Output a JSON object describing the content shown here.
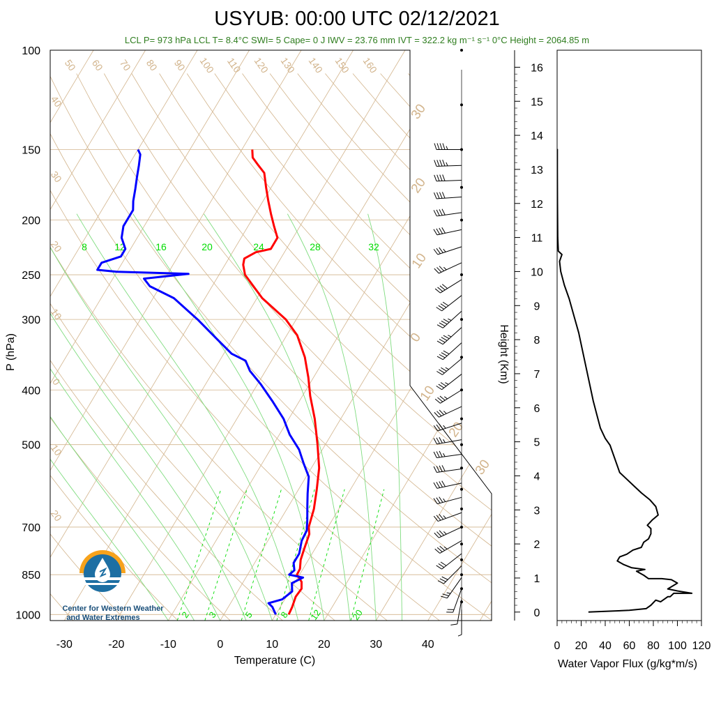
{
  "title": "USYUB: 00:00 UTC 02/12/2021",
  "subtitle": {
    "text": "LCL P= 973 hPa  LCL T= 8.4°C  SWI= 5  Cape= 0 J  IWV = 23.76 mm  IVT = 322.2 kg m⁻¹ s⁻¹  0°C Height = 2064.85 m",
    "color": "#2e7d1e"
  },
  "logo": {
    "line1": "Center for Western Weather",
    "line2": "and Water Extremes",
    "icon": "water-drop-sun-icon"
  },
  "colors": {
    "temperature": "#ff0000",
    "dewpoint": "#0000ff",
    "isotherm": "#d2b48c",
    "mixing_ratio": "#00dd00",
    "moist_adiabat": "#7fdc7f",
    "flux": "#000000"
  },
  "chart_data": [
    {
      "type": "line",
      "name": "skew-t",
      "xlabel": "Temperature (C)",
      "ylabel": "P (hPa)",
      "y_scale": "log",
      "xlim": [
        -34,
        52
      ],
      "ylim": [
        1025,
        100
      ],
      "x_ticks": [
        -30,
        -20,
        -10,
        0,
        10,
        20,
        30,
        40
      ],
      "y_ticks": [
        100,
        150,
        200,
        250,
        300,
        400,
        500,
        700,
        850,
        1000
      ],
      "isotherm_labels": [
        "50",
        "60",
        "70",
        "80",
        "90",
        "100",
        "110",
        "120",
        "130",
        "140",
        "150",
        "160"
      ],
      "theta_labels_left": [
        "40",
        "30",
        "20",
        "10",
        "0",
        "10",
        "20"
      ],
      "theta_labels_right": [
        "30",
        "20",
        "10",
        "0",
        "10",
        "20",
        "30"
      ],
      "mixing_ratio_labels_top": [
        "8",
        "12",
        "16",
        "20",
        "24",
        "28",
        "32"
      ],
      "mixing_ratio_labels_bottom": [
        "2",
        "3",
        "5",
        "8",
        "12",
        "20"
      ],
      "series": [
        {
          "name": "temperature",
          "points": [
            [
              12.5,
              1000
            ],
            [
              12.3,
              970
            ],
            [
              11.8,
              930
            ],
            [
              12.0,
              900
            ],
            [
              11.2,
              875
            ],
            [
              9.5,
              850
            ],
            [
              9.4,
              830
            ],
            [
              8.5,
              800
            ],
            [
              8.0,
              770
            ],
            [
              7.2,
              720
            ],
            [
              6.3,
              700
            ],
            [
              5.2,
              650
            ],
            [
              3.5,
              600
            ],
            [
              1.5,
              550
            ],
            [
              -1.5,
              500
            ],
            [
              -5,
              450
            ],
            [
              -8.5,
              410
            ],
            [
              -11,
              380
            ],
            [
              -14,
              350
            ],
            [
              -18,
              320
            ],
            [
              -22,
              300
            ],
            [
              -29,
              275
            ],
            [
              -35,
              250
            ],
            [
              -36.5,
              240
            ],
            [
              -37,
              234
            ],
            [
              -35.5,
              228
            ],
            [
              -33,
              225
            ],
            [
              -33,
              215
            ],
            [
              -35,
              205
            ],
            [
              -37,
              195
            ],
            [
              -39,
              185
            ],
            [
              -41,
              175
            ],
            [
              -43,
              165
            ],
            [
              -45,
              160
            ],
            [
              -47,
              155
            ],
            [
              -48,
              150
            ]
          ]
        },
        {
          "name": "dewpoint",
          "points": [
            [
              10,
              1000
            ],
            [
              8.5,
              970
            ],
            [
              7.3,
              955
            ],
            [
              9.5,
              940
            ],
            [
              10.5,
              910
            ],
            [
              9.5,
              880
            ],
            [
              11,
              860
            ],
            [
              8,
              850
            ],
            [
              8.5,
              835
            ],
            [
              7.5,
              810
            ],
            [
              7.5,
              780
            ],
            [
              6.5,
              740
            ],
            [
              6.3,
              710
            ],
            [
              5.2,
              680
            ],
            [
              3.5,
              640
            ],
            [
              2.2,
              610
            ],
            [
              0.5,
              570
            ],
            [
              -2,
              540
            ],
            [
              -4.5,
              510
            ],
            [
              -8,
              480
            ],
            [
              -11,
              450
            ],
            [
              -15,
              420
            ],
            [
              -19.5,
              390
            ],
            [
              -23,
              370
            ],
            [
              -25,
              355
            ],
            [
              -28.5,
              345
            ],
            [
              -33,
              325
            ],
            [
              -39,
              300
            ],
            [
              -46,
              275
            ],
            [
              -52,
              262
            ],
            [
              -54,
              254
            ],
            [
              -46,
              249
            ],
            [
              -60,
              247
            ],
            [
              -64,
              245
            ],
            [
              -64,
              238
            ],
            [
              -61,
              232
            ],
            [
              -61,
              225
            ],
            [
              -63,
              215
            ],
            [
              -64,
              205
            ],
            [
              -64,
              200
            ],
            [
              -64,
              192
            ],
            [
              -65,
              185
            ],
            [
              -66,
              176
            ],
            [
              -67,
              168
            ],
            [
              -68,
              160
            ],
            [
              -69,
              153
            ],
            [
              -70,
              150
            ]
          ]
        }
      ],
      "winds": [
        {
          "p": 150,
          "dir": 270,
          "kt": 45
        },
        {
          "p": 160,
          "dir": 268,
          "kt": 45
        },
        {
          "p": 170,
          "dir": 268,
          "kt": 40
        },
        {
          "p": 182,
          "dir": 266,
          "kt": 40
        },
        {
          "p": 194,
          "dir": 262,
          "kt": 40
        },
        {
          "p": 208,
          "dir": 258,
          "kt": 40
        },
        {
          "p": 223,
          "dir": 252,
          "kt": 35
        },
        {
          "p": 238,
          "dir": 245,
          "kt": 35
        },
        {
          "p": 255,
          "dir": 238,
          "kt": 40
        },
        {
          "p": 272,
          "dir": 232,
          "kt": 40
        },
        {
          "p": 290,
          "dir": 228,
          "kt": 45
        },
        {
          "p": 310,
          "dir": 228,
          "kt": 45
        },
        {
          "p": 330,
          "dir": 228,
          "kt": 40
        },
        {
          "p": 352,
          "dir": 230,
          "kt": 35
        },
        {
          "p": 375,
          "dir": 232,
          "kt": 35
        },
        {
          "p": 400,
          "dir": 238,
          "kt": 35
        },
        {
          "p": 428,
          "dir": 245,
          "kt": 35
        },
        {
          "p": 458,
          "dir": 252,
          "kt": 35
        },
        {
          "p": 490,
          "dir": 260,
          "kt": 35
        },
        {
          "p": 520,
          "dir": 262,
          "kt": 35
        },
        {
          "p": 552,
          "dir": 262,
          "kt": 40
        },
        {
          "p": 585,
          "dir": 258,
          "kt": 40
        },
        {
          "p": 620,
          "dir": 255,
          "kt": 35
        },
        {
          "p": 660,
          "dir": 250,
          "kt": 35
        },
        {
          "p": 700,
          "dir": 245,
          "kt": 35
        },
        {
          "p": 740,
          "dir": 240,
          "kt": 35
        },
        {
          "p": 780,
          "dir": 232,
          "kt": 30
        },
        {
          "p": 820,
          "dir": 225,
          "kt": 30
        },
        {
          "p": 860,
          "dir": 215,
          "kt": 25
        },
        {
          "p": 900,
          "dir": 200,
          "kt": 20
        },
        {
          "p": 940,
          "dir": 190,
          "kt": 10
        },
        {
          "p": 980,
          "dir": 180,
          "kt": 5
        }
      ]
    },
    {
      "type": "line",
      "name": "water-vapor-flux",
      "xlabel": "Water Vapor Flux (g/kg*m/s)",
      "ylabel": "Height (Km)",
      "xlim": [
        0,
        120
      ],
      "ylim": [
        -0.25,
        16.5
      ],
      "x_ticks": [
        0,
        20,
        40,
        60,
        80,
        100,
        120
      ],
      "y_ticks": [
        0,
        1,
        2,
        3,
        4,
        5,
        6,
        7,
        8,
        9,
        10,
        11,
        12,
        13,
        14,
        15,
        16
      ],
      "series": [
        {
          "name": "flux",
          "points": [
            [
              26,
              0
            ],
            [
              60,
              0.05
            ],
            [
              74,
              0.1
            ],
            [
              78,
              0.2
            ],
            [
              82,
              0.35
            ],
            [
              86,
              0.3
            ],
            [
              88,
              0.35
            ],
            [
              92,
              0.45
            ],
            [
              94,
              0.45
            ],
            [
              97,
              0.55
            ],
            [
              112,
              0.55
            ],
            [
              100,
              0.62
            ],
            [
              92,
              0.68
            ],
            [
              100,
              0.85
            ],
            [
              95,
              0.95
            ],
            [
              87,
              0.98
            ],
            [
              76,
              0.98
            ],
            [
              72,
              1.08
            ],
            [
              66,
              1.2
            ],
            [
              73,
              1.25
            ],
            [
              62,
              1.3
            ],
            [
              55,
              1.4
            ],
            [
              50,
              1.5
            ],
            [
              52,
              1.62
            ],
            [
              58,
              1.7
            ],
            [
              63,
              1.82
            ],
            [
              70,
              1.9
            ],
            [
              72,
              2.05
            ],
            [
              76,
              2.15
            ],
            [
              78,
              2.3
            ],
            [
              78,
              2.45
            ],
            [
              75,
              2.55
            ],
            [
              79,
              2.7
            ],
            [
              84,
              2.85
            ],
            [
              82,
              3.1
            ],
            [
              77,
              3.3
            ],
            [
              70,
              3.5
            ],
            [
              64,
              3.7
            ],
            [
              58,
              3.9
            ],
            [
              52,
              4.1
            ],
            [
              48,
              4.5
            ],
            [
              44,
              4.9
            ],
            [
              40,
              5.1
            ],
            [
              36,
              5.4
            ],
            [
              33,
              5.8
            ],
            [
              30,
              6.2
            ],
            [
              27,
              6.7
            ],
            [
              24,
              7.2
            ],
            [
              21,
              7.7
            ],
            [
              18,
              8.2
            ],
            [
              14,
              8.7
            ],
            [
              10,
              9.2
            ],
            [
              6,
              9.6
            ],
            [
              3,
              10.0
            ],
            [
              2,
              10.3
            ],
            [
              4,
              10.5
            ],
            [
              1,
              10.6
            ],
            [
              0.5,
              11
            ],
            [
              0.3,
              12
            ],
            [
              0.2,
              13
            ],
            [
              0.2,
              13.6
            ]
          ]
        }
      ]
    }
  ]
}
